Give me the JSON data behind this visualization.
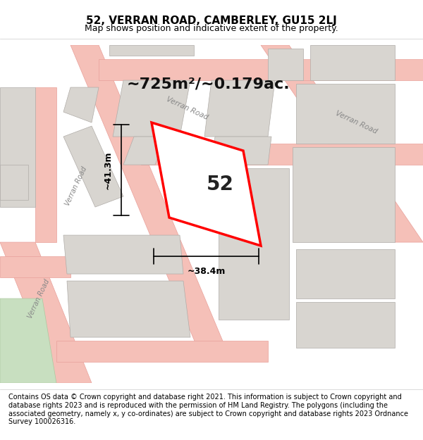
{
  "title": "52, VERRAN ROAD, CAMBERLEY, GU15 2LJ",
  "subtitle": "Map shows position and indicative extent of the property.",
  "footer": "Contains OS data © Crown copyright and database right 2021. This information is subject to Crown copyright and database rights 2023 and is reproduced with the permission of HM Land Registry. The polygons (including the associated geometry, namely x, y co-ordinates) are subject to Crown copyright and database rights 2023 Ordnance Survey 100026316.",
  "area_label": "~725m²/~0.179ac.",
  "plot_number": "52",
  "width_label": "~38.4m",
  "height_label": "~41.3m",
  "bg_color": "#f0eeeb",
  "map_bg": "#f0eeeb",
  "road_color": "#f5c0b8",
  "road_stroke": "#e8a09a",
  "building_color": "#d8d5d0",
  "building_stroke": "#b0aca8",
  "plot_color": "#ffffff",
  "plot_stroke": "#ff0000",
  "green_color": "#c8dfc0",
  "title_fontsize": 11,
  "subtitle_fontsize": 9,
  "footer_fontsize": 7,
  "area_fontsize": 16,
  "number_fontsize": 20,
  "dim_fontsize": 9
}
